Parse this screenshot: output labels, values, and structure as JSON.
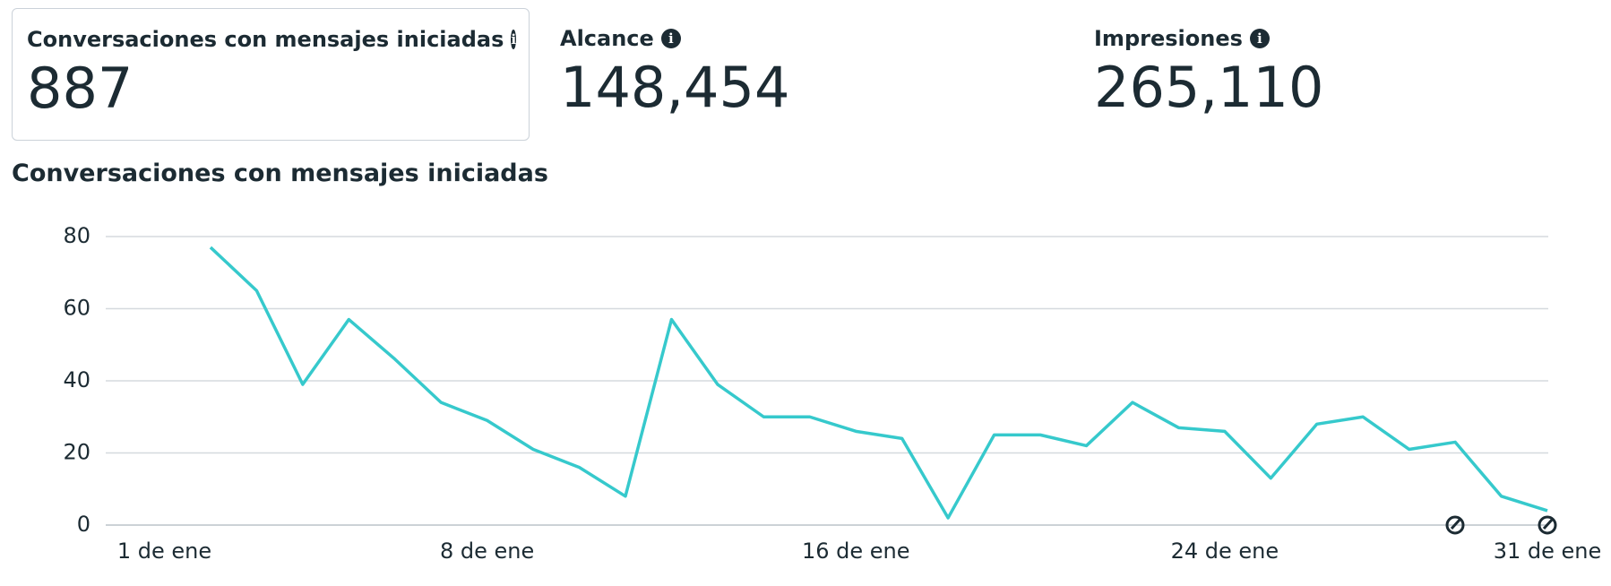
{
  "kpis": [
    {
      "label": "Conversaciones con mensajes iniciadas",
      "value": "887"
    },
    {
      "label": "Alcance",
      "value": "148,454"
    },
    {
      "label": "Impresiones",
      "value": "265,110"
    }
  ],
  "chart_data": {
    "type": "line",
    "title": "Conversaciones con mensajes iniciadas",
    "categories": [
      "1 de ene",
      null,
      null,
      null,
      null,
      null,
      null,
      "8 de ene",
      null,
      null,
      null,
      null,
      null,
      null,
      null,
      "16 de ene",
      null,
      null,
      null,
      null,
      null,
      null,
      null,
      "24 de ene",
      null,
      null,
      null,
      null,
      null,
      null,
      "31 de ene"
    ],
    "values": [
      null,
      77,
      65,
      39,
      57,
      46,
      34,
      29,
      21,
      16,
      8,
      57,
      39,
      30,
      30,
      26,
      24,
      2,
      25,
      25,
      22,
      34,
      27,
      26,
      13,
      28,
      30,
      21,
      23,
      8,
      4
    ],
    "color": "#36c9cc",
    "ylim": [
      0,
      80
    ],
    "yticks": [
      0,
      20,
      40,
      60,
      80
    ],
    "grid": true
  }
}
